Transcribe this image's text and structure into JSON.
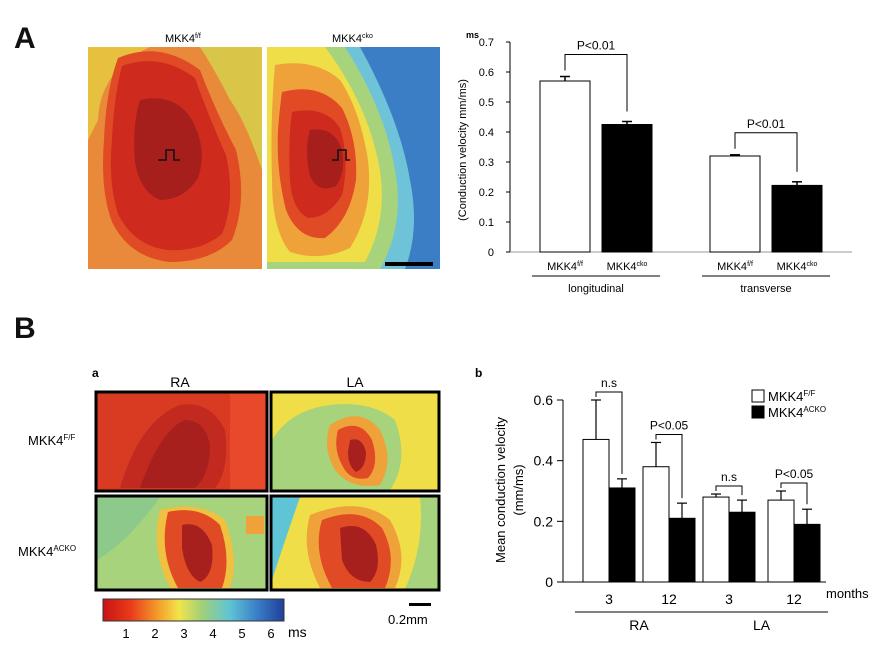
{
  "panels": {
    "A": {
      "letter": "A",
      "maps": {
        "left_title": {
          "base": "MKK4",
          "sup": "f/f"
        },
        "right_title": {
          "base": "MKK4",
          "sup": "cko"
        },
        "stray_label": "ms"
      },
      "chart_data": {
        "type": "bar",
        "ylabel": "(Conduction velocity mm/ms)",
        "ylim": [
          0,
          0.7
        ],
        "yticks": [
          0,
          0.1,
          0.2,
          0.3,
          0.4,
          0.5,
          0.6,
          0.7
        ],
        "groups": [
          {
            "name": "longitudinal",
            "bars": [
              {
                "label_base": "MKK4",
                "label_sup": "f/f",
                "value": 0.57,
                "error": 0.015,
                "color": "#ffffff"
              },
              {
                "label_base": "MKK4",
                "label_sup": "cko",
                "value": 0.425,
                "error": 0.01,
                "color": "#000000"
              }
            ],
            "significance": "P<0.01"
          },
          {
            "name": "transverse",
            "bars": [
              {
                "label_base": "MKK4",
                "label_sup": "f/f",
                "value": 0.32,
                "error": 0.004,
                "color": "#ffffff"
              },
              {
                "label_base": "MKK4",
                "label_sup": "cko",
                "value": 0.222,
                "error": 0.012,
                "color": "#000000"
              }
            ],
            "significance": "P<0.01"
          }
        ]
      }
    },
    "B": {
      "letter": "B",
      "a": {
        "label": "a",
        "col_titles": [
          "RA",
          "LA"
        ],
        "row_titles": [
          {
            "base": "MKK4",
            "sup": "F/F"
          },
          {
            "base": "MKK4",
            "sup": "ACKO"
          }
        ],
        "colorbar": {
          "ticks": [
            "1",
            "2",
            "3",
            "4",
            "5",
            "6"
          ],
          "unit": "ms"
        },
        "scalebar": "0.2mm"
      },
      "b": {
        "label": "b",
        "chart_data": {
          "type": "bar",
          "ylabel_line1": "Mean conduction velocity",
          "ylabel_line2": "(mm/ms)",
          "ylim": [
            0,
            0.6
          ],
          "yticks": [
            "0",
            "0.2",
            "0.4",
            "0.6"
          ],
          "x_unit": "months",
          "legend": [
            {
              "base": "MKK4",
              "sup": "F/F",
              "color": "#ffffff"
            },
            {
              "base": "MKK4",
              "sup": "ACKO",
              "color": "#000000"
            }
          ],
          "legend_position": "top-right",
          "regions": [
            {
              "name": "RA",
              "groups": [
                {
                  "month": "3",
                  "ff": 0.47,
                  "ff_err": 0.13,
                  "acko": 0.31,
                  "acko_err": 0.03,
                  "significance": "n.s"
                },
                {
                  "month": "12",
                  "ff": 0.38,
                  "ff_err": 0.08,
                  "acko": 0.21,
                  "acko_err": 0.05,
                  "significance": "P<0.05"
                }
              ]
            },
            {
              "name": "LA",
              "groups": [
                {
                  "month": "3",
                  "ff": 0.28,
                  "ff_err": 0.01,
                  "acko": 0.23,
                  "acko_err": 0.04,
                  "significance": "n.s"
                },
                {
                  "month": "12",
                  "ff": 0.27,
                  "ff_err": 0.03,
                  "acko": 0.19,
                  "acko_err": 0.05,
                  "significance": "P<0.05"
                }
              ]
            }
          ]
        }
      }
    }
  }
}
